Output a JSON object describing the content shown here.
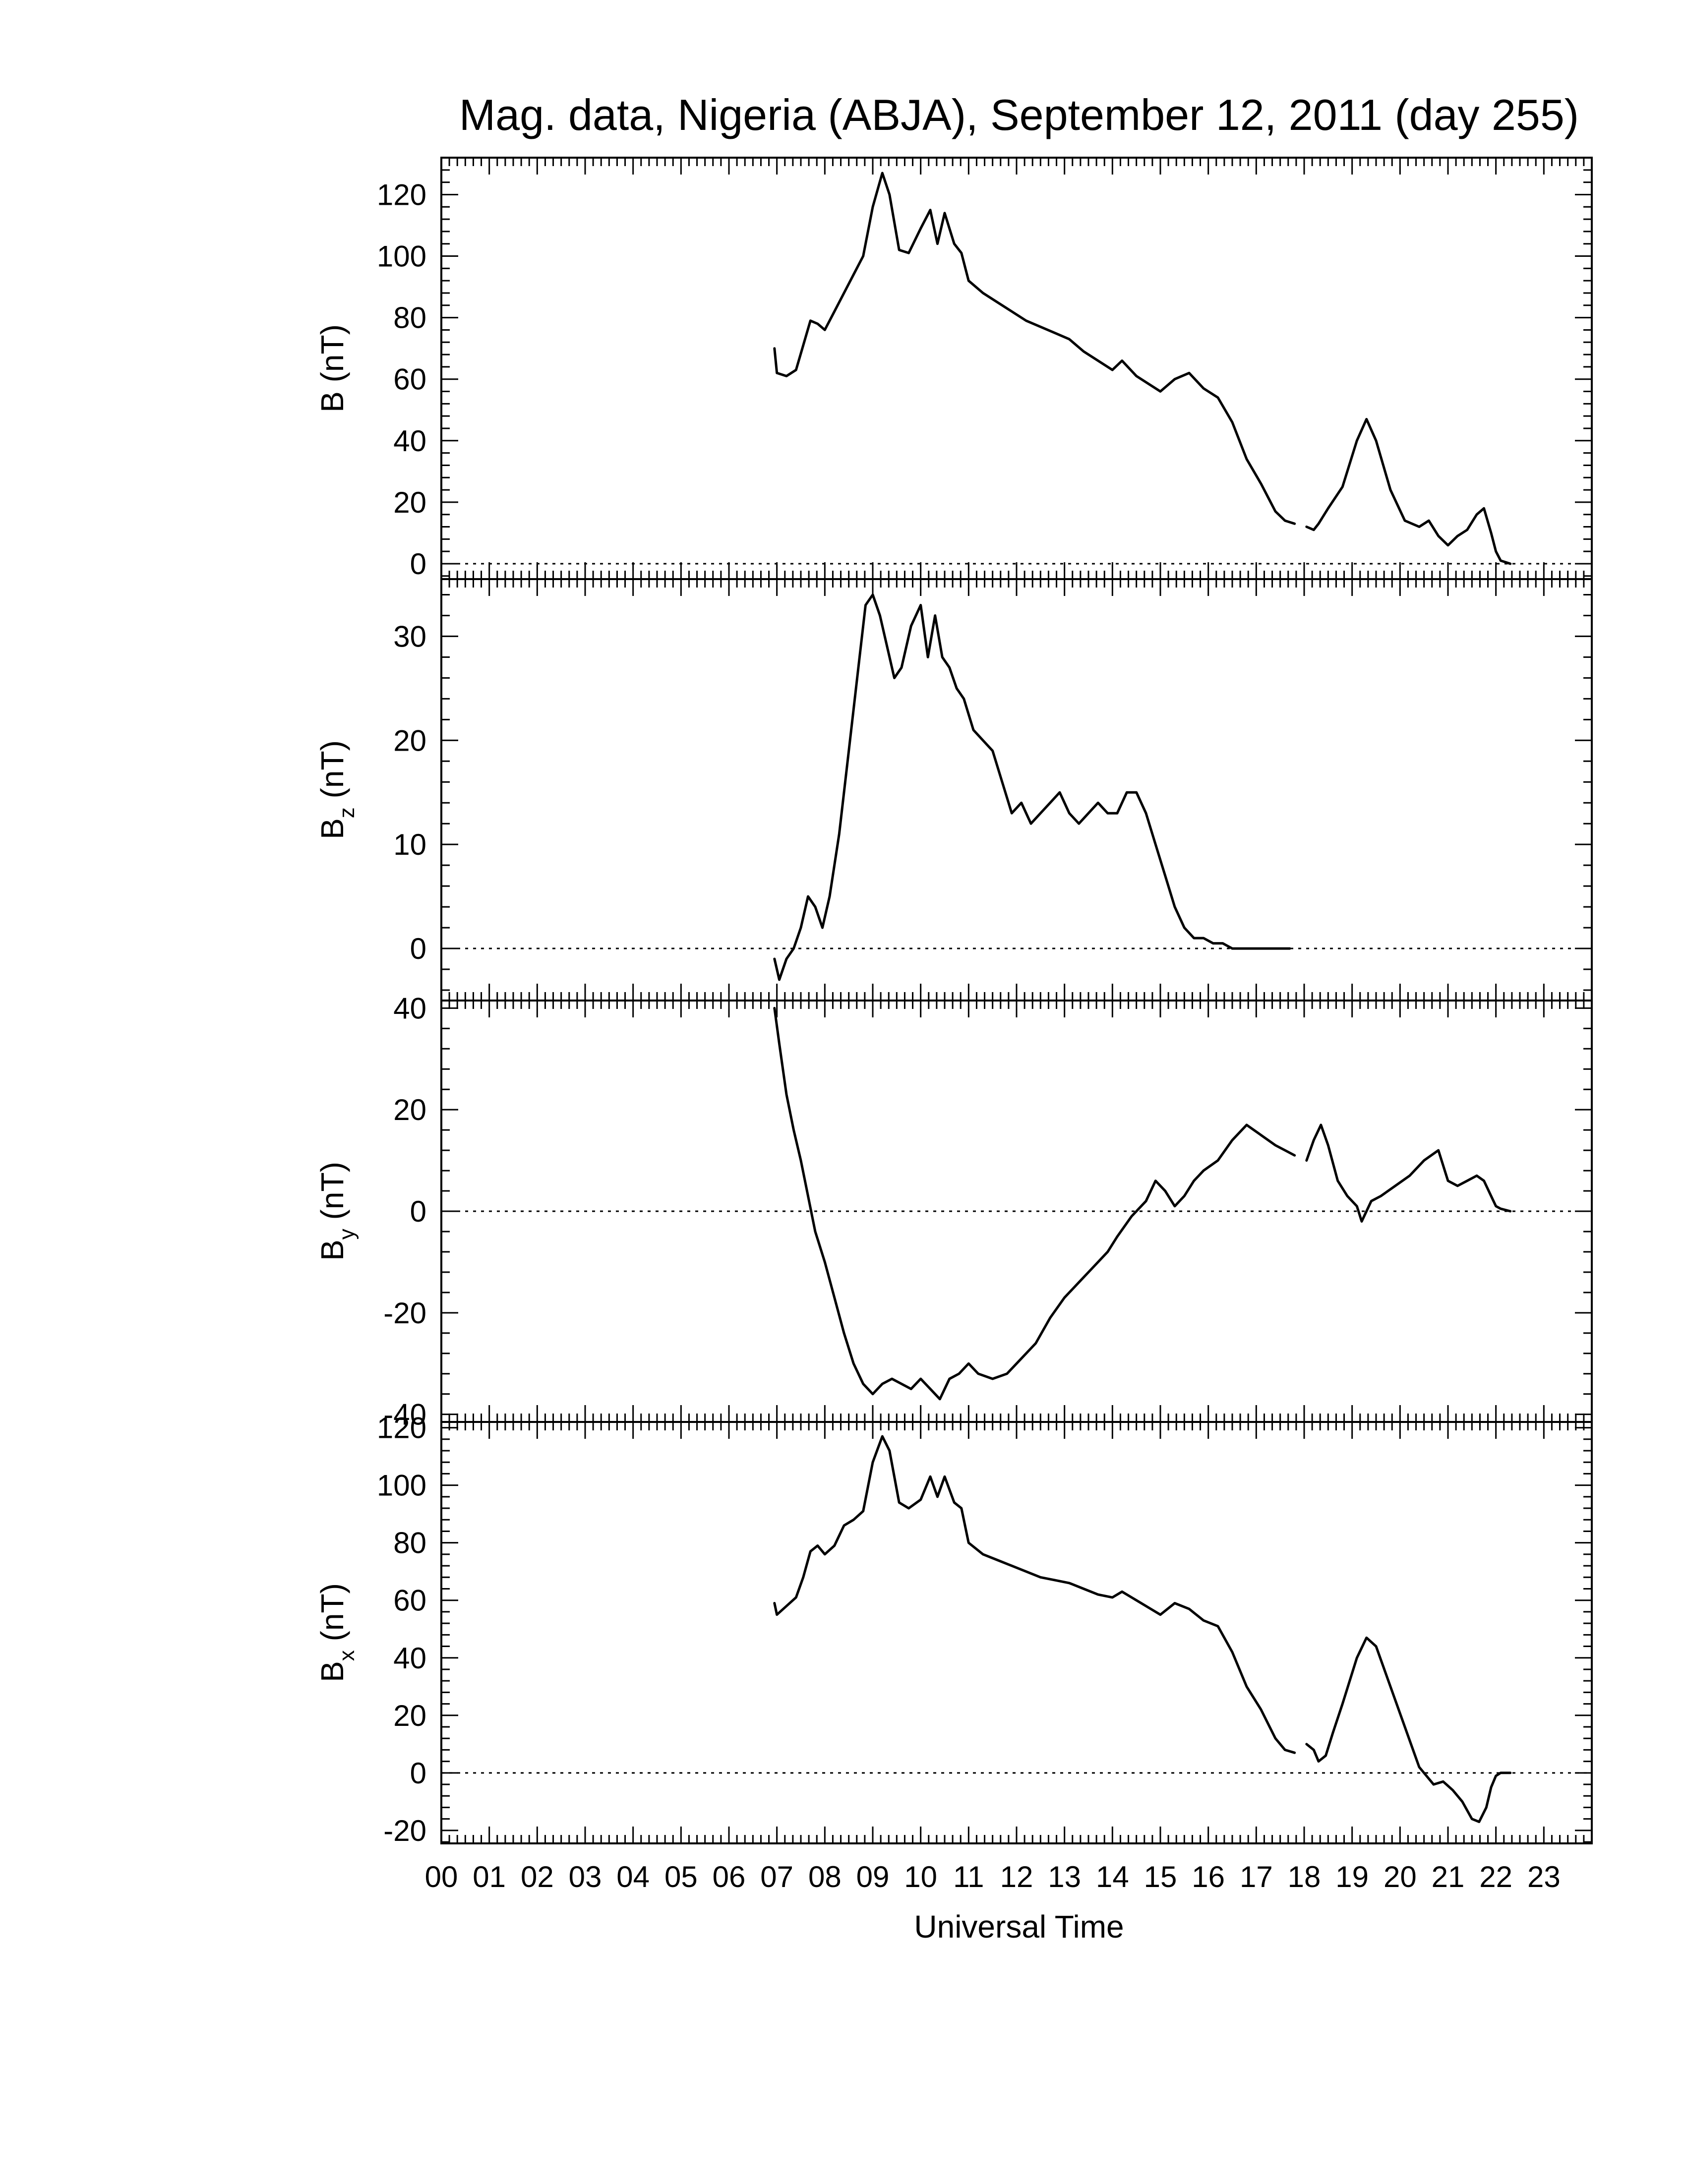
{
  "title": "Mag. data, Nigeria (ABJA), September 12, 2011 (day 255)",
  "xlabel": "Universal Time",
  "xticks": [
    "00",
    "01",
    "02",
    "03",
    "04",
    "05",
    "06",
    "07",
    "08",
    "09",
    "10",
    "11",
    "12",
    "13",
    "14",
    "15",
    "16",
    "17",
    "18",
    "19",
    "20",
    "21",
    "22",
    "23"
  ],
  "chart_data": [
    {
      "type": "line",
      "ylabel_main": "B",
      "ylabel_sub": "",
      "ylabel_unit": "(nT)",
      "ylim": [
        -5,
        132
      ],
      "yticks": [
        0,
        20,
        40,
        60,
        80,
        100,
        120
      ],
      "xlim": [
        0,
        24
      ],
      "zero_line": true,
      "series": [
        {
          "x": [
            6.95,
            7.0,
            7.2,
            7.4,
            7.55,
            7.7,
            7.85,
            8.0,
            8.2,
            8.4,
            8.6,
            8.8,
            9.0,
            9.2,
            9.35,
            9.55,
            9.75,
            10.0,
            10.2,
            10.35,
            10.5,
            10.7,
            10.85,
            11.0,
            11.3,
            11.6,
            11.9,
            12.2,
            12.5,
            12.8,
            13.1,
            13.4,
            13.7,
            14.0,
            14.2,
            14.5,
            14.8,
            15.0,
            15.3,
            15.6,
            15.9,
            16.2,
            16.5,
            16.8,
            17.1,
            17.4,
            17.6,
            17.8
          ],
          "y": [
            70,
            62,
            61,
            63,
            71,
            79,
            78,
            76,
            82,
            88,
            94,
            100,
            116,
            127,
            120,
            102,
            101,
            109,
            115,
            104,
            114,
            104,
            101,
            92,
            88,
            85,
            82,
            79,
            77,
            75,
            73,
            69,
            66,
            63,
            66,
            61,
            58,
            56,
            60,
            62,
            57,
            54,
            46,
            34,
            26,
            17,
            14,
            13
          ]
        },
        {
          "x": [
            18.05,
            18.2,
            18.3,
            18.5,
            18.8,
            19.1,
            19.3,
            19.5,
            19.8,
            20.1,
            20.4,
            20.6,
            20.8,
            21.0,
            21.2,
            21.4,
            21.6,
            21.75,
            21.9,
            22.0,
            22.1,
            22.3
          ],
          "y": [
            12,
            11,
            13,
            18,
            25,
            40,
            47,
            40,
            24,
            14,
            12,
            14,
            9,
            6,
            9,
            11,
            16,
            18,
            10,
            4,
            1,
            0
          ]
        }
      ]
    },
    {
      "type": "line",
      "ylabel_main": "B",
      "ylabel_sub": "z",
      "ylabel_unit": "(nT)",
      "ylim": [
        -5,
        35.5
      ],
      "yticks": [
        0,
        10,
        20,
        30
      ],
      "xlim": [
        0,
        24
      ],
      "zero_line": true,
      "series": [
        {
          "x": [
            6.95,
            7.05,
            7.2,
            7.35,
            7.5,
            7.65,
            7.8,
            7.95,
            8.1,
            8.3,
            8.5,
            8.7,
            8.85,
            9.0,
            9.15,
            9.3,
            9.45,
            9.6,
            9.8,
            10.0,
            10.15,
            10.3,
            10.45,
            10.6,
            10.75,
            10.9,
            11.1,
            11.3,
            11.5,
            11.7,
            11.9,
            12.1,
            12.3,
            12.5,
            12.7,
            12.9,
            13.1,
            13.3,
            13.5,
            13.7,
            13.9,
            14.1,
            14.3,
            14.5,
            14.7,
            14.9,
            15.1,
            15.3,
            15.5,
            15.7,
            15.9,
            16.1,
            16.3,
            16.5,
            16.7,
            16.9,
            17.1,
            17.3,
            17.5,
            17.7
          ],
          "y": [
            -1,
            -3,
            -1,
            0,
            2,
            5,
            4,
            2,
            5,
            11,
            19,
            27,
            33,
            34,
            32,
            29,
            26,
            27,
            31,
            33,
            28,
            32,
            28,
            27,
            25,
            24,
            21,
            20,
            19,
            16,
            13,
            14,
            12,
            13,
            14,
            15,
            13,
            12,
            13,
            14,
            13,
            13,
            15,
            15,
            13,
            10,
            7,
            4,
            2,
            1,
            1,
            0.5,
            0.5,
            0,
            0,
            0,
            0,
            0,
            0,
            0
          ]
        }
      ]
    },
    {
      "type": "line",
      "ylabel_main": "B",
      "ylabel_sub": "y",
      "ylabel_unit": "(nT)",
      "ylim": [
        -41.5,
        41.5
      ],
      "yticks": [
        -40,
        -20,
        0,
        20,
        40
      ],
      "xlim": [
        0,
        24
      ],
      "zero_line": true,
      "series": [
        {
          "x": [
            6.95,
            7.05,
            7.2,
            7.35,
            7.5,
            7.65,
            7.8,
            8.0,
            8.2,
            8.4,
            8.6,
            8.8,
            9.0,
            9.2,
            9.4,
            9.6,
            9.8,
            10.0,
            10.2,
            10.4,
            10.6,
            10.8,
            11.0,
            11.2,
            11.5,
            11.8,
            12.1,
            12.4,
            12.7,
            13.0,
            13.3,
            13.6,
            13.9,
            14.1,
            14.4,
            14.7,
            14.9,
            15.1,
            15.3,
            15.5,
            15.7,
            15.9,
            16.2,
            16.5,
            16.8,
            17.1,
            17.4,
            17.6,
            17.8
          ],
          "y": [
            40,
            33,
            23,
            16,
            10,
            3,
            -4,
            -10,
            -17,
            -24,
            -30,
            -34,
            -36,
            -34,
            -33,
            -34,
            -35,
            -33,
            -35,
            -37,
            -33,
            -32,
            -30,
            -32,
            -33,
            -32,
            -29,
            -26,
            -21,
            -17,
            -14,
            -11,
            -8,
            -5,
            -1,
            2,
            6,
            4,
            1,
            3,
            6,
            8,
            10,
            14,
            17,
            15,
            13,
            12,
            11
          ]
        },
        {
          "x": [
            18.05,
            18.2,
            18.35,
            18.5,
            18.7,
            18.9,
            19.1,
            19.2,
            19.4,
            19.6,
            19.9,
            20.2,
            20.5,
            20.8,
            21.0,
            21.2,
            21.4,
            21.6,
            21.75,
            21.9,
            22.0,
            22.1,
            22.3
          ],
          "y": [
            10,
            14,
            17,
            13,
            6,
            3,
            1,
            -2,
            2,
            3,
            5,
            7,
            10,
            12,
            6,
            5,
            6,
            7,
            6,
            3,
            1,
            0.5,
            0
          ]
        }
      ]
    },
    {
      "type": "line",
      "ylabel_main": "B",
      "ylabel_sub": "x",
      "ylabel_unit": "(nT)",
      "ylim": [
        -24.5,
        122
      ],
      "yticks": [
        -20,
        0,
        20,
        40,
        60,
        80,
        100,
        120
      ],
      "xlim": [
        0,
        24
      ],
      "zero_line": true,
      "series": [
        {
          "x": [
            6.95,
            7.0,
            7.2,
            7.4,
            7.55,
            7.7,
            7.85,
            8.0,
            8.2,
            8.4,
            8.6,
            8.8,
            9.0,
            9.2,
            9.35,
            9.55,
            9.75,
            10.0,
            10.2,
            10.35,
            10.5,
            10.7,
            10.85,
            11.0,
            11.3,
            11.6,
            11.9,
            12.2,
            12.5,
            12.8,
            13.1,
            13.4,
            13.7,
            14.0,
            14.2,
            14.5,
            14.8,
            15.0,
            15.3,
            15.6,
            15.9,
            16.2,
            16.5,
            16.8,
            17.1,
            17.4,
            17.6,
            17.8
          ],
          "y": [
            59,
            55,
            58,
            61,
            68,
            77,
            79,
            76,
            79,
            86,
            88,
            91,
            108,
            117,
            112,
            94,
            92,
            95,
            103,
            96,
            103,
            94,
            92,
            80,
            76,
            74,
            72,
            70,
            68,
            67,
            66,
            64,
            62,
            61,
            63,
            60,
            57,
            55,
            59,
            57,
            53,
            51,
            42,
            30,
            22,
            12,
            8,
            7
          ]
        },
        {
          "x": [
            18.05,
            18.2,
            18.3,
            18.45,
            18.6,
            18.8,
            19.1,
            19.3,
            19.5,
            19.8,
            20.1,
            20.4,
            20.7,
            20.9,
            21.1,
            21.3,
            21.5,
            21.65,
            21.8,
            21.9,
            22.0,
            22.1,
            22.3
          ],
          "y": [
            10,
            8,
            4,
            6,
            14,
            24,
            40,
            47,
            44,
            30,
            16,
            2,
            -4,
            -3,
            -6,
            -10,
            -16,
            -17,
            -12,
            -5,
            -1,
            0,
            0
          ]
        }
      ]
    }
  ]
}
